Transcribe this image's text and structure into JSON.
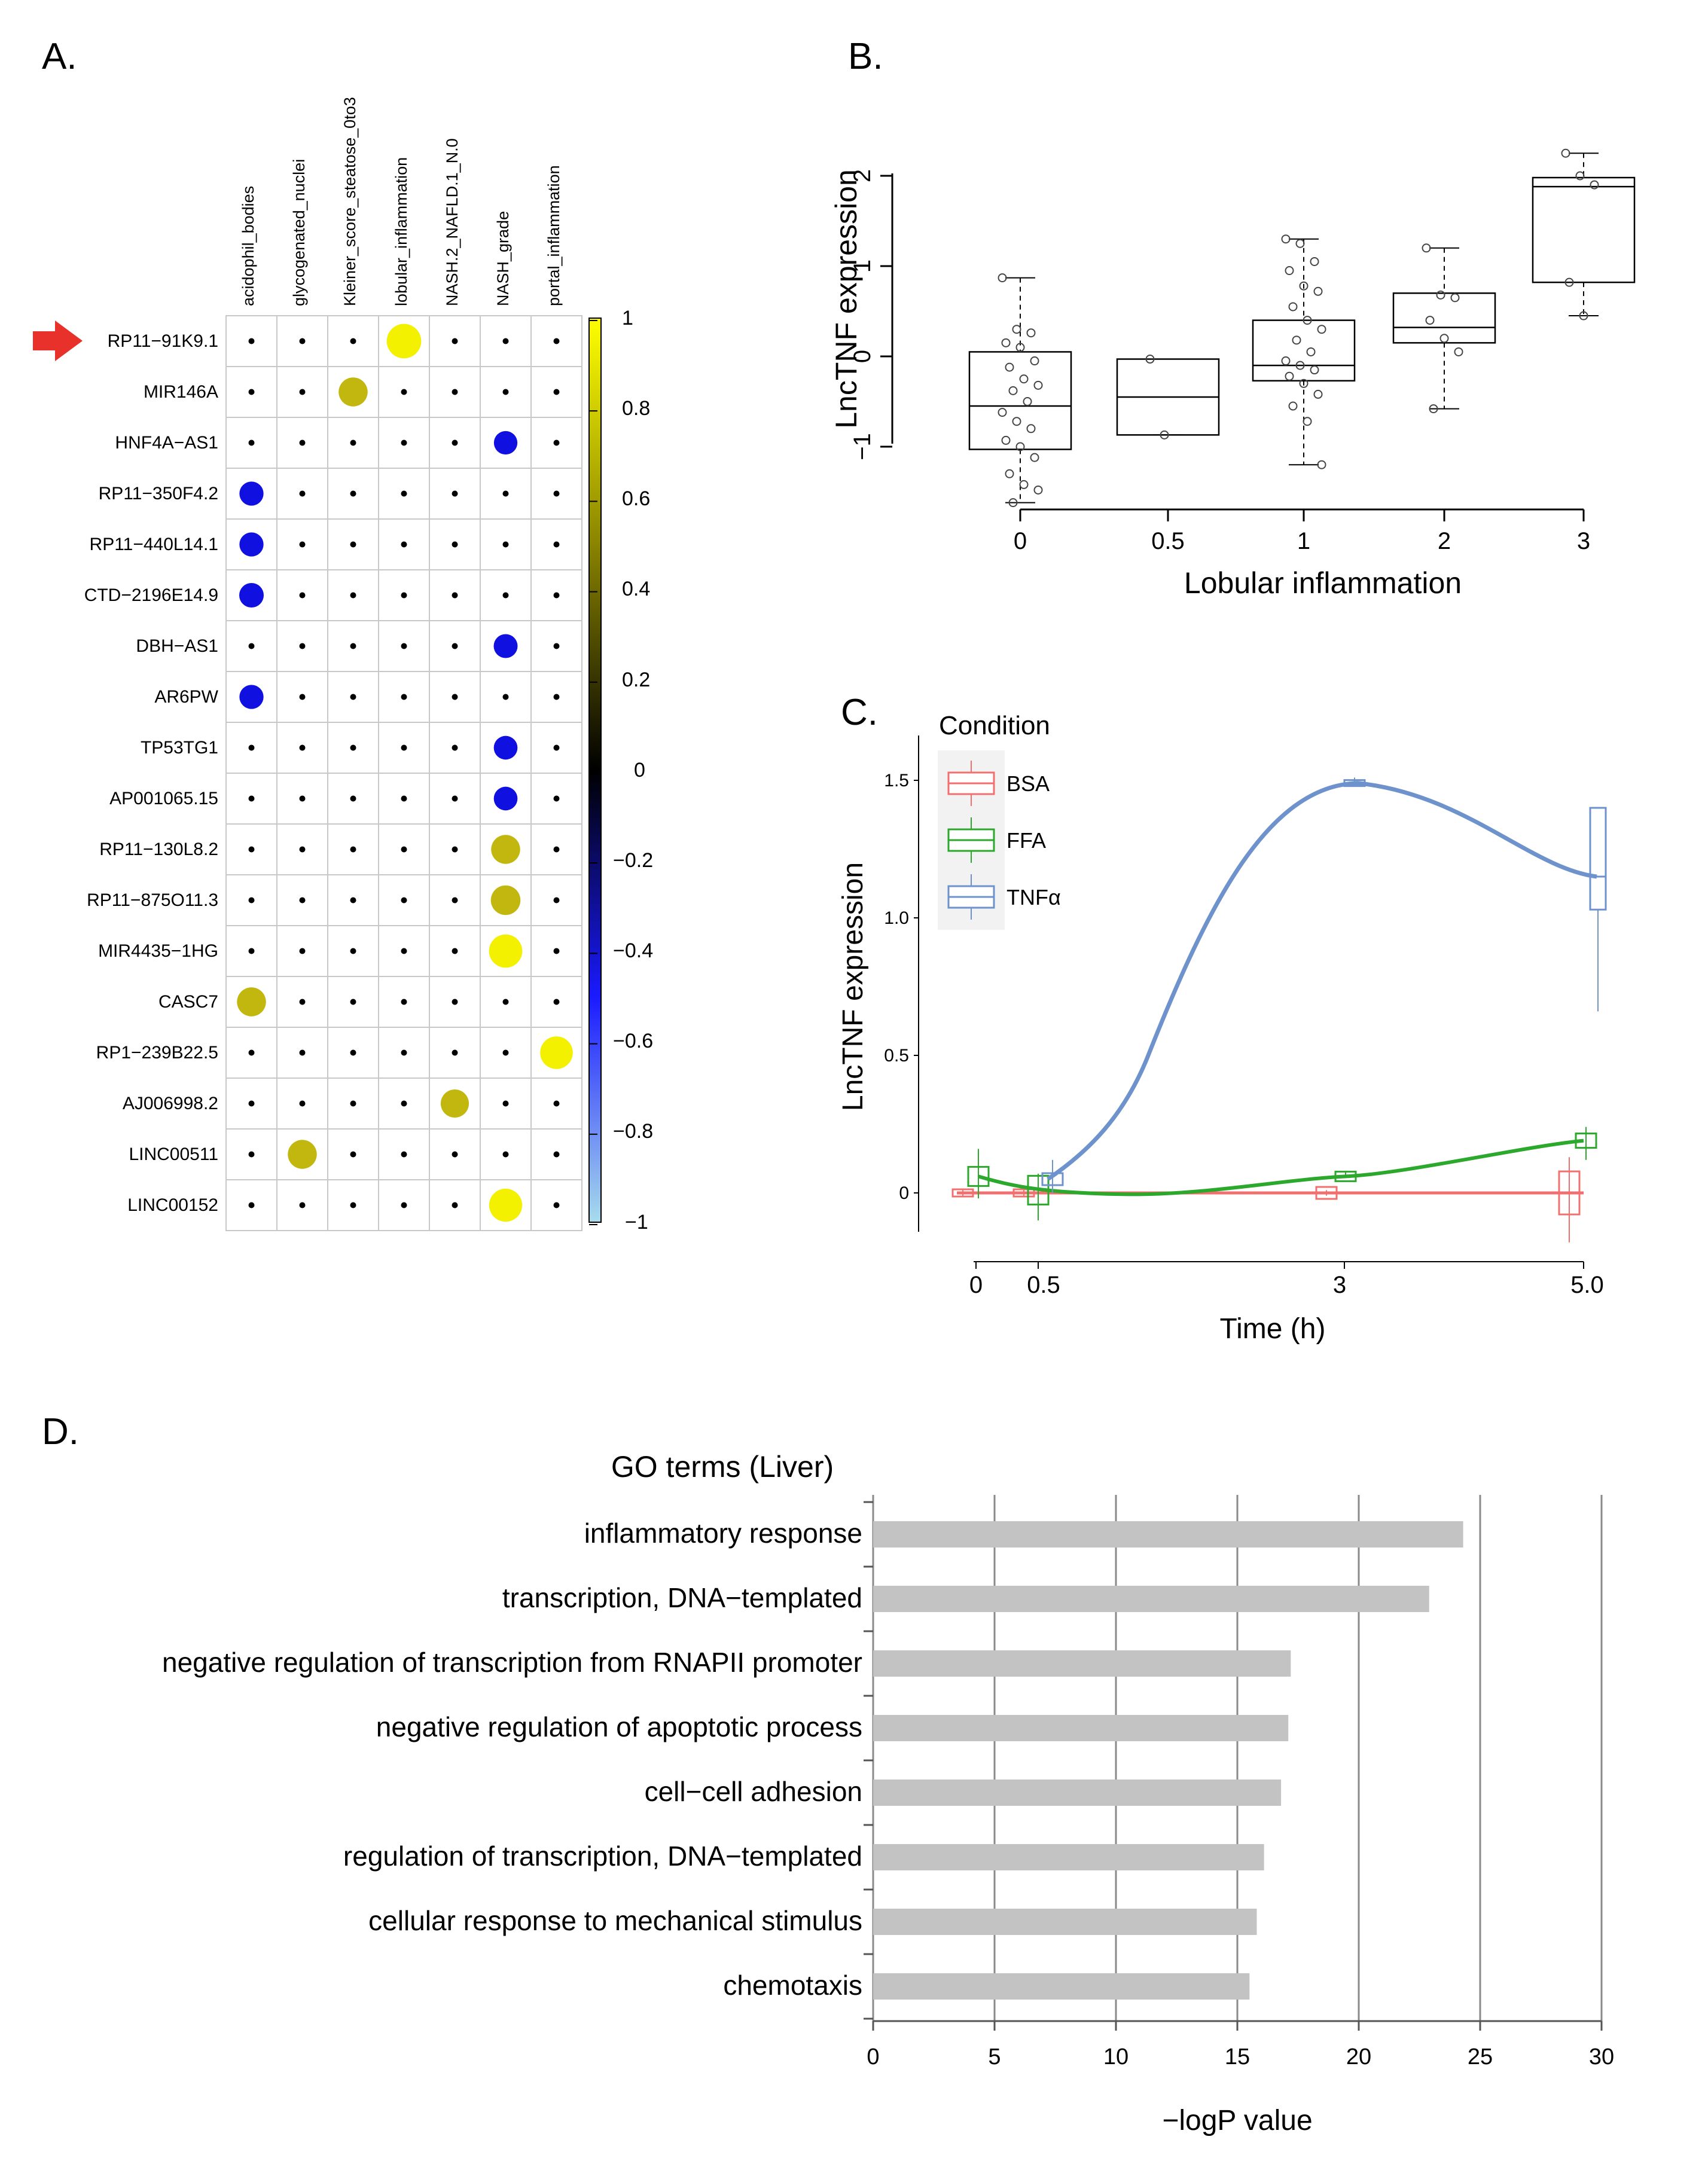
{
  "panel_labels": {
    "a": "A.",
    "b": "B.",
    "c": "C.",
    "d": "D."
  },
  "colors": {
    "cell_grid": "#c8c8c8",
    "dot": "#000000",
    "positive_high": "#f3f000",
    "positive_mid": "#c2b70f",
    "negative": "#1010e0",
    "arrow": "#e8312a",
    "bsa": "#f07070",
    "ffa": "#2ca82c",
    "tnf": "#6e92cc",
    "go_bar": "#c3c3c3",
    "go_grid": "#8a8a8a"
  },
  "chart_data": [
    {
      "id": "A",
      "type": "heatmap",
      "title": "",
      "columns": [
        "acidophil_bodies",
        "glycogenated_nuclei",
        "Kleiner_score_steatose_0to3",
        "lobular_inflammation",
        "NASH.2_NAFLD.1_N.0",
        "NASH_grade",
        "portal_inflammation"
      ],
      "rows": [
        "RP11−91K9.1",
        "MIR146A",
        "HNF4A−AS1",
        "RP11−350F4.2",
        "RP11−440L14.1",
        "CTD−2196E14.9",
        "DBH−AS1",
        "AR6PW",
        "TP53TG1",
        "AP001065.15",
        "RP11−130L8.2",
        "RP11−875O11.3",
        "MIR4435−1HG",
        "CASC7",
        "RP1−239B22.5",
        "AJ006998.2",
        "LINC00511",
        "LINC00152"
      ],
      "highlighted_row": "RP11−91K9.1",
      "significant_cells": [
        {
          "row": 0,
          "col": 3,
          "value": 0.99
        },
        {
          "row": 1,
          "col": 2,
          "value": 0.72
        },
        {
          "row": 2,
          "col": 5,
          "value": -0.45
        },
        {
          "row": 3,
          "col": 0,
          "value": -0.48
        },
        {
          "row": 4,
          "col": 0,
          "value": -0.48
        },
        {
          "row": 5,
          "col": 0,
          "value": -0.5
        },
        {
          "row": 6,
          "col": 5,
          "value": -0.47
        },
        {
          "row": 7,
          "col": 0,
          "value": -0.48
        },
        {
          "row": 8,
          "col": 5,
          "value": -0.46
        },
        {
          "row": 9,
          "col": 5,
          "value": -0.46
        },
        {
          "row": 10,
          "col": 5,
          "value": 0.72
        },
        {
          "row": 11,
          "col": 5,
          "value": 0.75
        },
        {
          "row": 12,
          "col": 5,
          "value": 0.93
        },
        {
          "row": 13,
          "col": 0,
          "value": 0.72
        },
        {
          "row": 14,
          "col": 6,
          "value": 0.9
        },
        {
          "row": 15,
          "col": 4,
          "value": 0.68
        },
        {
          "row": 16,
          "col": 1,
          "value": 0.72
        },
        {
          "row": 17,
          "col": 5,
          "value": 0.92
        }
      ],
      "colorbar": {
        "range": [
          -1,
          1
        ],
        "ticks": [
          "1",
          "0.8",
          "0.6",
          "0.4",
          "0.2",
          "0",
          "−0.2",
          "−0.4",
          "−0.6",
          "−0.8",
          "−1"
        ]
      }
    },
    {
      "id": "B",
      "type": "box",
      "xlabel": "Lobular inflammation",
      "ylabel": "LncTNF expression",
      "ylim": [
        -1.65,
        2.4
      ],
      "yticks": [
        "−1",
        "0",
        "1",
        "2"
      ],
      "categories": [
        "0",
        "0.5",
        "1",
        "2",
        "3"
      ],
      "boxes": [
        {
          "label": "0",
          "q1": -1.03,
          "median": -0.55,
          "q3": 0.05,
          "lo": -1.62,
          "hi": 0.87,
          "points": [
            0.87,
            0.3,
            0.26,
            0.15,
            0.1,
            -0.05,
            -0.12,
            -0.25,
            -0.32,
            -0.38,
            -0.5,
            -0.62,
            -0.72,
            -0.8,
            -0.93,
            -1.0,
            -1.12,
            -1.3,
            -1.42,
            -1.48,
            -1.62
          ]
        },
        {
          "label": "0.5",
          "q1": -0.87,
          "median": -0.45,
          "q3": -0.03,
          "lo": -0.87,
          "hi": -0.03,
          "points": [
            -0.03,
            -0.87
          ]
        },
        {
          "label": "1",
          "q1": -0.27,
          "median": -0.1,
          "q3": 0.4,
          "lo": -1.2,
          "hi": 1.3,
          "points": [
            1.3,
            1.25,
            1.05,
            0.95,
            0.78,
            0.72,
            0.55,
            0.4,
            0.3,
            0.18,
            0.05,
            -0.05,
            -0.1,
            -0.15,
            -0.22,
            -0.3,
            -0.42,
            -0.55,
            -0.72,
            -1.2
          ]
        },
        {
          "label": "2",
          "q1": 0.15,
          "median": 0.32,
          "q3": 0.7,
          "lo": -0.58,
          "hi": 1.2,
          "points": [
            1.2,
            0.68,
            0.65,
            0.4,
            0.2,
            0.05,
            -0.58
          ]
        },
        {
          "label": "3",
          "q1": 0.82,
          "median": 1.88,
          "q3": 1.98,
          "lo": 0.45,
          "hi": 2.25,
          "points": [
            2.25,
            2.0,
            1.9,
            0.82,
            0.45
          ]
        }
      ]
    },
    {
      "id": "C",
      "type": "line",
      "xlabel": "Time (h)",
      "ylabel": "LncTNF expression",
      "xlim": [
        0,
        5.0
      ],
      "ylim": [
        -0.2,
        1.65
      ],
      "xticks": [
        "0",
        "0.5",
        "3",
        "5.0"
      ],
      "yticks": [
        "0",
        "0.5",
        "1.0",
        "1.5"
      ],
      "legend_title": "Condition",
      "series": [
        {
          "name": "BSA",
          "x": [
            0,
            0.5,
            3,
            5.0
          ],
          "y": [
            0,
            0,
            0,
            0
          ]
        },
        {
          "name": "FFA",
          "x": [
            0,
            0.5,
            3,
            5.0
          ],
          "y": [
            0.06,
            0.01,
            0.06,
            0.19
          ]
        },
        {
          "name": "TNFα",
          "x": [
            0.5,
            3,
            5.0
          ],
          "y": [
            0.05,
            1.49,
            1.15
          ]
        }
      ]
    },
    {
      "id": "D",
      "type": "bar",
      "title": "GO terms (Liver)",
      "xlabel": "−logP value",
      "xlim": [
        0,
        30
      ],
      "xticks": [
        "0",
        "5",
        "10",
        "15",
        "20",
        "25",
        "30"
      ],
      "categories": [
        "inflammatory response",
        "transcription, DNA−templated",
        "negative regulation of transcription from RNAPII promoter",
        "negative regulation of apoptotic process",
        "cell−cell adhesion",
        "regulation of transcription, DNA−templated",
        "cellular response to mechanical stimulus",
        "chemotaxis"
      ],
      "values": [
        24.3,
        22.9,
        17.2,
        17.1,
        16.8,
        16.1,
        15.8,
        15.5
      ]
    }
  ]
}
